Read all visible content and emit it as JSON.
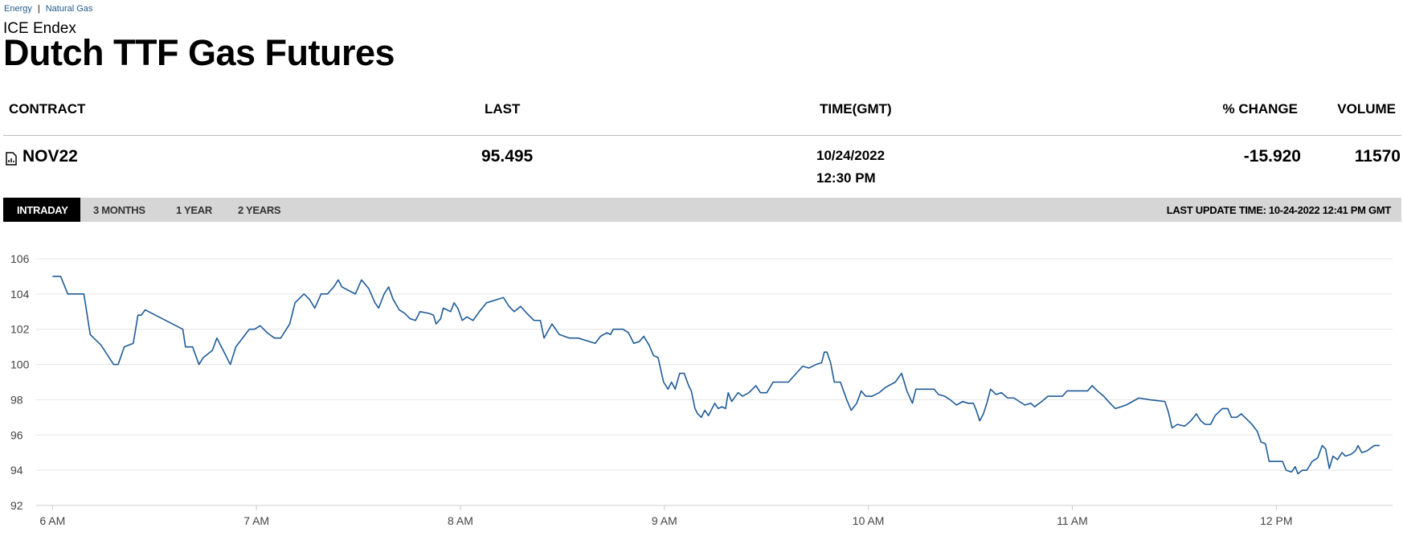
{
  "breadcrumb": [
    "Energy",
    "Natural Gas"
  ],
  "exchange": "ICE Endex",
  "title": "Dutch TTF Gas Futures",
  "table": {
    "headers": [
      "CONTRACT",
      "LAST",
      "TIME(GMT)",
      "% CHANGE",
      "VOLUME"
    ],
    "rows": [
      {
        "contract": "NOV22",
        "last": "95.495",
        "date": "10/24/2022",
        "time": "12:30 PM",
        "change": "-15.920",
        "volume": "11570"
      }
    ]
  },
  "tabs": [
    "INTRADAY",
    "3 MONTHS",
    "1 YEAR",
    "2 YEARS"
  ],
  "active_tab": 0,
  "last_update": "LAST UPDATE TIME: 10-24-2022 12:41 PM GMT",
  "chart_data": {
    "type": "line",
    "color": "#1f5b98",
    "grid": true,
    "xlim": [
      5.92,
      12.57
    ],
    "ylim": [
      92,
      106
    ],
    "yticks": [
      92,
      94,
      96,
      98,
      100,
      102,
      104,
      106
    ],
    "xticks": [
      {
        "value": 6,
        "label": "6 AM"
      },
      {
        "value": 7,
        "label": "7 AM"
      },
      {
        "value": 8,
        "label": "8 AM"
      },
      {
        "value": 9,
        "label": "9 AM"
      },
      {
        "value": 10,
        "label": "10 AM"
      },
      {
        "value": 11,
        "label": "11 AM"
      },
      {
        "value": 12,
        "label": "12 PM"
      }
    ],
    "x": [
      6.0,
      6.04,
      6.075,
      6.154,
      6.185,
      6.238,
      6.3,
      6.322,
      6.352,
      6.396,
      6.419,
      6.436,
      6.454,
      6.639,
      6.652,
      6.687,
      6.718,
      6.74,
      6.784,
      6.806,
      6.837,
      6.872,
      6.899,
      6.965,
      6.991,
      7.018,
      7.053,
      7.088,
      7.119,
      7.163,
      7.189,
      7.233,
      7.26,
      7.286,
      7.317,
      7.348,
      7.379,
      7.401,
      7.419,
      7.485,
      7.515,
      7.551,
      7.581,
      7.599,
      7.626,
      7.648,
      7.67,
      7.7,
      7.727,
      7.753,
      7.78,
      7.802,
      7.846,
      7.868,
      7.881,
      7.903,
      7.916,
      7.952,
      7.969,
      7.987,
      8.009,
      8.031,
      8.062,
      8.093,
      8.128,
      8.211,
      8.238,
      8.264,
      8.295,
      8.326,
      8.361,
      8.392,
      8.41,
      8.449,
      8.485,
      8.533,
      8.577,
      8.661,
      8.687,
      8.718,
      8.736,
      8.749,
      8.797,
      8.824,
      8.85,
      8.877,
      8.899,
      8.925,
      8.947,
      8.969,
      8.996,
      9.018,
      9.035,
      9.053,
      9.075,
      9.097,
      9.119,
      9.132,
      9.15,
      9.163,
      9.181,
      9.198,
      9.216,
      9.247,
      9.264,
      9.282,
      9.3,
      9.313,
      9.33,
      9.361,
      9.383,
      9.414,
      9.449,
      9.471,
      9.502,
      9.533,
      9.608,
      9.678,
      9.709,
      9.744,
      9.771,
      9.784,
      9.797,
      9.815,
      9.833,
      9.863,
      9.894,
      9.916,
      9.943,
      9.965,
      9.987,
      10.018,
      10.053,
      10.084,
      10.132,
      10.163,
      10.189,
      10.216,
      10.233,
      10.304,
      10.322,
      10.344,
      10.374,
      10.401,
      10.432,
      10.463,
      10.489,
      10.515,
      10.529,
      10.546,
      10.564,
      10.581,
      10.599,
      10.626,
      10.652,
      10.683,
      10.714,
      10.74,
      10.767,
      10.797,
      10.815,
      10.85,
      10.881,
      10.925,
      10.952,
      10.974,
      11.048,
      11.075,
      11.097,
      11.123,
      11.154,
      11.185,
      11.211,
      11.238,
      11.264,
      11.295,
      11.326,
      11.379,
      11.454,
      11.471,
      11.489,
      11.515,
      11.551,
      11.581,
      11.608,
      11.63,
      11.652,
      11.678,
      11.7,
      11.736,
      11.762,
      11.78,
      11.806,
      11.828,
      11.855,
      11.881,
      11.907,
      11.925,
      11.947,
      11.965,
      12.031,
      12.048,
      12.075,
      12.093,
      12.106,
      12.128,
      12.15,
      12.176,
      12.203,
      12.225,
      12.242,
      12.26,
      12.278,
      12.3,
      12.322,
      12.339,
      12.366,
      12.388,
      12.401,
      12.419,
      12.445,
      12.48,
      12.507
    ],
    "values": [
      105.0,
      105.0,
      104.0,
      104.0,
      101.7,
      101.1,
      100.0,
      100.0,
      101.0,
      101.2,
      102.8,
      102.8,
      103.1,
      102.0,
      101.0,
      101.0,
      100.0,
      100.4,
      100.8,
      101.5,
      100.8,
      100.0,
      101.0,
      102.0,
      102.0,
      102.2,
      101.8,
      101.5,
      101.5,
      102.3,
      103.5,
      104.0,
      103.7,
      103.2,
      104.0,
      104.0,
      104.4,
      104.8,
      104.4,
      104.0,
      104.8,
      104.3,
      103.5,
      103.2,
      104.0,
      104.4,
      103.7,
      103.1,
      102.9,
      102.6,
      102.5,
      103.0,
      102.9,
      102.8,
      102.3,
      102.6,
      103.2,
      103.0,
      103.5,
      103.2,
      102.5,
      102.7,
      102.5,
      103.0,
      103.5,
      103.8,
      103.3,
      103.0,
      103.3,
      102.9,
      102.5,
      102.5,
      101.5,
      102.3,
      101.7,
      101.5,
      101.5,
      101.2,
      101.6,
      101.8,
      101.7,
      102.0,
      102.0,
      101.8,
      101.2,
      101.3,
      101.6,
      101.1,
      100.5,
      100.4,
      99.0,
      98.6,
      99.0,
      98.6,
      99.5,
      99.5,
      98.8,
      98.5,
      97.5,
      97.2,
      97.0,
      97.4,
      97.1,
      97.8,
      97.5,
      97.6,
      97.5,
      98.4,
      97.9,
      98.4,
      98.2,
      98.4,
      98.8,
      98.4,
      98.4,
      99.0,
      99.0,
      99.9,
      99.8,
      100.0,
      100.1,
      100.7,
      100.7,
      100.1,
      99.0,
      99.0,
      98.0,
      97.4,
      97.8,
      98.5,
      98.2,
      98.2,
      98.4,
      98.7,
      99.0,
      99.5,
      98.5,
      97.8,
      98.6,
      98.6,
      98.6,
      98.3,
      98.2,
      98.0,
      97.7,
      97.9,
      97.8,
      97.8,
      97.4,
      96.8,
      97.2,
      97.8,
      98.6,
      98.3,
      98.4,
      98.1,
      98.1,
      97.9,
      97.7,
      97.8,
      97.6,
      97.9,
      98.2,
      98.2,
      98.2,
      98.5,
      98.5,
      98.5,
      98.8,
      98.5,
      98.2,
      97.8,
      97.5,
      97.6,
      97.7,
      97.9,
      98.1,
      98.0,
      97.9,
      97.3,
      96.4,
      96.6,
      96.5,
      96.8,
      97.2,
      96.8,
      96.6,
      96.6,
      97.1,
      97.5,
      97.5,
      97.0,
      97.0,
      97.2,
      96.9,
      96.6,
      96.2,
      95.6,
      95.5,
      94.5,
      94.5,
      94.0,
      93.9,
      94.2,
      93.8,
      94.0,
      94.0,
      94.5,
      94.7,
      95.4,
      95.2,
      94.1,
      94.8,
      94.6,
      95.0,
      94.8,
      94.9,
      95.1,
      95.4,
      95.0,
      95.1,
      95.4,
      95.4
    ]
  }
}
